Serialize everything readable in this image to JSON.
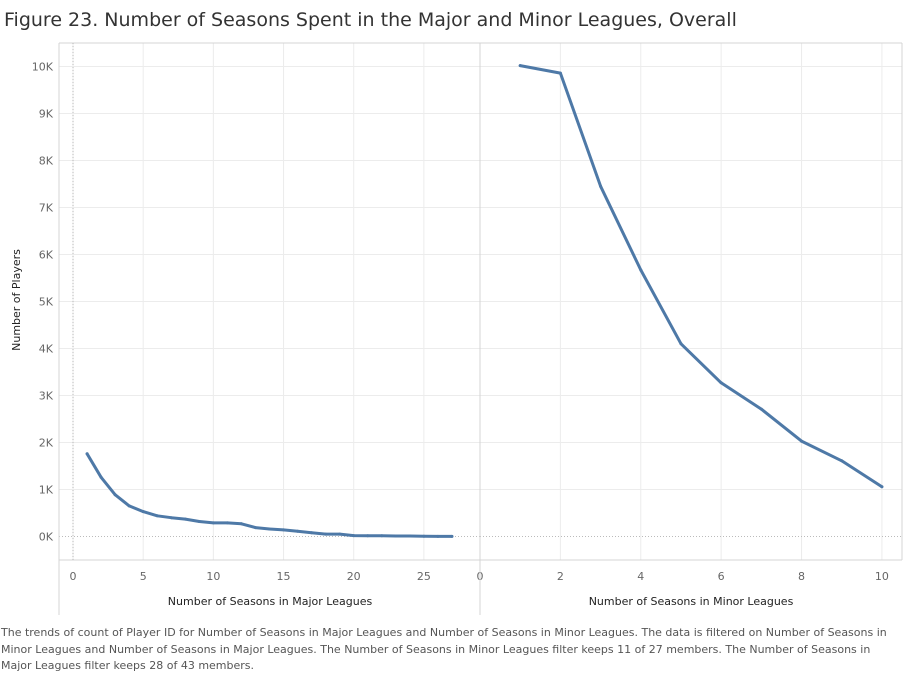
{
  "title": "Figure 23. Number of Seasons Spent in the Major and Minor Leagues, Overall",
  "caption": "The trends of count of Player ID for Number of Seasons in Major Leagues and Number of Seasons in Minor Leagues. The data is filtered on Number of Seasons in Minor Leagues and Number of Seasons in Major Leagues. The Number of Seasons in Minor Leagues filter keeps 11 of 27 members. The Number of Seasons in Major Leagues filter keeps 28 of 43 members.",
  "colors": {
    "line": "#4e79a7",
    "grid": "#ececec",
    "axis": "#d4d4d4",
    "zero_line": "#bbbbbb"
  },
  "chart_data": [
    {
      "type": "line",
      "xlabel": "Number of Seasons in Major Leagues",
      "ylabel": "Number of Players",
      "xlim": [
        -1,
        29
      ],
      "ylim": [
        -500,
        10500
      ],
      "xticks": [
        0,
        5,
        10,
        15,
        20,
        25
      ],
      "xtick_labels": [
        "0",
        "5",
        "10",
        "15",
        "20",
        "25"
      ],
      "yticks": [
        0,
        1000,
        2000,
        3000,
        4000,
        5000,
        6000,
        7000,
        8000,
        9000,
        10000
      ],
      "ytick_labels": [
        "0K",
        "1K",
        "2K",
        "3K",
        "4K",
        "5K",
        "6K",
        "7K",
        "8K",
        "9K",
        "10K"
      ],
      "grid": true,
      "series": [
        {
          "x": [
            1,
            2,
            3,
            4,
            5,
            6,
            7,
            8,
            9,
            10,
            11,
            12,
            13,
            14,
            15,
            16,
            17,
            18,
            19,
            20,
            21,
            22,
            23,
            24,
            25,
            26,
            27
          ],
          "y": [
            1760,
            1260,
            890,
            650,
            530,
            440,
            400,
            370,
            320,
            290,
            290,
            270,
            190,
            160,
            140,
            110,
            80,
            50,
            50,
            20,
            15,
            15,
            10,
            10,
            5,
            3,
            2
          ]
        }
      ]
    },
    {
      "type": "line",
      "xlabel": "Number of Seasons in Minor Leagues",
      "ylabel": "Number of Players",
      "xlim": [
        0,
        10.5
      ],
      "ylim": [
        -500,
        10500
      ],
      "xticks": [
        0,
        2,
        4,
        6,
        8,
        10
      ],
      "xtick_labels": [
        "0",
        "2",
        "4",
        "6",
        "8",
        "10"
      ],
      "grid": true,
      "series": [
        {
          "x": [
            1,
            2,
            3,
            4,
            5,
            6,
            7,
            8,
            9,
            10
          ],
          "y": [
            10020,
            9860,
            7450,
            5670,
            4100,
            3270,
            2710,
            2030,
            1610,
            1060
          ]
        }
      ]
    }
  ]
}
